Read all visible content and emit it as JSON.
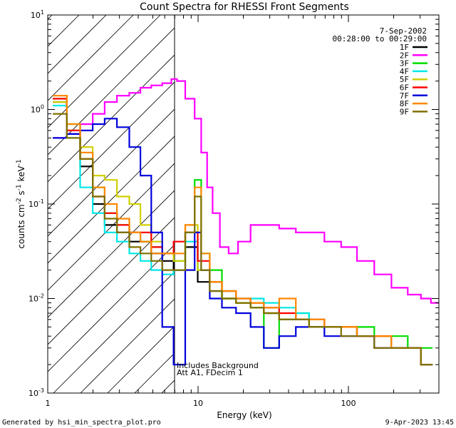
{
  "chart_data": {
    "type": "line",
    "title": "Count Spectra for RHESSI Front Segments",
    "xlabel": "Energy (keV)",
    "ylabel_parts": {
      "a": "counts cm",
      "b": "-2",
      "c": " s",
      "d": "-1",
      "e": " keV",
      "f": "-1"
    },
    "xscale": "log",
    "yscale": "log",
    "xlim": [
      1,
      400
    ],
    "ylim": [
      0.001,
      10
    ],
    "x_ticks": [
      {
        "value": 1,
        "label": "1"
      },
      {
        "value": 10,
        "label": "10"
      },
      {
        "value": 100,
        "label": "100"
      }
    ],
    "y_ticks": [
      {
        "value": 0.001,
        "base": "10",
        "exp": "-3"
      },
      {
        "value": 0.01,
        "base": "10",
        "exp": "-2"
      },
      {
        "value": 0.1,
        "base": "10",
        "exp": "-1"
      },
      {
        "value": 1,
        "base": "10",
        "exp": "0"
      },
      {
        "value": 10,
        "base": "10",
        "exp": "1"
      }
    ],
    "hatched_region": {
      "x": [
        1,
        6
      ]
    },
    "date": "7-Sep-2002",
    "time_range": "00:28:00 to 00:29:00",
    "legend_placement": "top-right",
    "annotations": [
      "Includes Background",
      "Att A1, FDecim 1"
    ],
    "series": [
      {
        "name": "1F",
        "color": "#000000",
        "x": [
          1.2,
          1.5,
          1.8,
          2.2,
          2.6,
          3.2,
          3.8,
          4.5,
          5.3,
          6.3,
          7.5,
          9,
          11,
          13,
          16,
          20,
          25,
          30,
          40,
          50,
          60,
          80,
          100,
          130,
          170,
          220,
          280,
          330
        ],
        "y": [
          1.2,
          0.55,
          0.25,
          0.1,
          0.06,
          0.05,
          0.04,
          0.04,
          0.03,
          0.025,
          0.02,
          0.035,
          0.015,
          0.012,
          0.01,
          0.009,
          0.008,
          0.007,
          0.006,
          0.006,
          0.005,
          0.005,
          0.005,
          0.004,
          0.004,
          0.003,
          0.003,
          0.002
        ]
      },
      {
        "name": "2F",
        "color": "#ff00ff",
        "x": [
          1.2,
          1.5,
          1.8,
          2.2,
          2.6,
          3.2,
          3.8,
          4.5,
          5.3,
          6.3,
          7,
          7.5,
          9,
          10,
          11,
          12,
          13,
          15,
          17,
          20,
          25,
          30,
          40,
          50,
          60,
          80,
          100,
          130,
          170,
          220,
          280,
          330,
          380
        ],
        "y": [
          0.5,
          0.55,
          0.7,
          0.9,
          1.2,
          1.4,
          1.5,
          1.7,
          1.8,
          1.9,
          2.1,
          2.0,
          1.3,
          0.8,
          0.35,
          0.15,
          0.08,
          0.035,
          0.03,
          0.04,
          0.06,
          0.06,
          0.055,
          0.05,
          0.05,
          0.04,
          0.035,
          0.025,
          0.018,
          0.013,
          0.011,
          0.01,
          0.009
        ]
      },
      {
        "name": "3F",
        "color": "#00dd00",
        "x": [
          1.2,
          1.5,
          1.8,
          2.2,
          2.6,
          3.2,
          3.8,
          4.5,
          5.3,
          6.3,
          7.5,
          9,
          10,
          11,
          13,
          16,
          20,
          25,
          30,
          40,
          50,
          60,
          80,
          100,
          130,
          170,
          220,
          280,
          330
        ],
        "y": [
          1.3,
          0.7,
          0.3,
          0.15,
          0.08,
          0.06,
          0.05,
          0.04,
          0.035,
          0.03,
          0.025,
          0.05,
          0.18,
          0.03,
          0.02,
          0.01,
          0.009,
          0.008,
          0.003,
          0.006,
          0.007,
          0.005,
          0.005,
          0.005,
          0.005,
          0.004,
          0.004,
          0.003,
          0.003
        ]
      },
      {
        "name": "4F",
        "color": "#00e8e8",
        "x": [
          1.2,
          1.5,
          1.8,
          2.2,
          2.6,
          3.2,
          3.8,
          4.5,
          5.3,
          6.3,
          7.5,
          9,
          11,
          13,
          16,
          20,
          25,
          30,
          40,
          50,
          60,
          80,
          100,
          130,
          170,
          220,
          280,
          330
        ],
        "y": [
          1.1,
          0.5,
          0.15,
          0.08,
          0.05,
          0.04,
          0.03,
          0.025,
          0.02,
          0.018,
          0.02,
          0.04,
          0.02,
          0.015,
          0.012,
          0.01,
          0.01,
          0.009,
          0.008,
          0.007,
          0.006,
          0.005,
          0.005,
          0.004,
          0.004,
          0.003,
          0.003,
          0.002
        ]
      },
      {
        "name": "5F",
        "color": "#d0d000",
        "x": [
          1.2,
          1.5,
          1.8,
          2.2,
          2.6,
          3.2,
          3.8,
          4.5,
          5.3,
          6.3,
          7.5,
          9,
          11,
          13,
          16,
          20,
          25,
          30,
          40,
          50,
          60,
          80,
          100,
          130,
          170,
          220,
          280,
          330
        ],
        "y": [
          1.2,
          0.6,
          0.4,
          0.2,
          0.18,
          0.12,
          0.1,
          0.06,
          0.04,
          0.03,
          0.025,
          0.06,
          0.02,
          0.015,
          0.01,
          0.009,
          0.008,
          0.007,
          0.006,
          0.006,
          0.005,
          0.005,
          0.005,
          0.004,
          0.004,
          0.003,
          0.003,
          0.002
        ]
      },
      {
        "name": "6F",
        "color": "#ff0000",
        "x": [
          1.2,
          1.5,
          1.8,
          2.2,
          2.6,
          3.2,
          3.8,
          4.5,
          5.3,
          6.3,
          7.5,
          9,
          11,
          13,
          16,
          20,
          25,
          30,
          40,
          50,
          60,
          80,
          100,
          130,
          170,
          220,
          280,
          330
        ],
        "y": [
          1.3,
          0.6,
          0.3,
          0.12,
          0.08,
          0.06,
          0.05,
          0.05,
          0.035,
          0.03,
          0.04,
          0.05,
          0.025,
          0.015,
          0.012,
          0.01,
          0.009,
          0.008,
          0.007,
          0.006,
          0.006,
          0.005,
          0.005,
          0.004,
          0.004,
          0.003,
          0.003,
          0.002
        ]
      },
      {
        "name": "7F",
        "color": "#0000dd",
        "x": [
          1.2,
          1.5,
          1.8,
          2.2,
          2.6,
          3.2,
          3.8,
          4.5,
          5.3,
          6.3,
          7.5,
          9,
          10,
          11,
          13,
          16,
          20,
          25,
          30,
          40,
          50,
          60,
          80,
          100,
          130,
          170,
          220,
          280,
          330
        ],
        "y": [
          0.5,
          0.55,
          0.6,
          0.7,
          0.8,
          0.65,
          0.4,
          0.2,
          0.05,
          0.005,
          0.002,
          0.02,
          0.05,
          0.02,
          0.01,
          0.008,
          0.007,
          0.005,
          0.003,
          0.004,
          0.005,
          0.005,
          0.004,
          0.004,
          0.004,
          0.003,
          0.003,
          0.003,
          0.002
        ]
      },
      {
        "name": "8F",
        "color": "#ff8800",
        "x": [
          1.2,
          1.5,
          1.8,
          2.2,
          2.6,
          3.2,
          3.8,
          4.5,
          5.3,
          6.3,
          7.5,
          9,
          10,
          11,
          13,
          16,
          20,
          25,
          30,
          40,
          50,
          60,
          80,
          100,
          130,
          170,
          220,
          280,
          330
        ],
        "y": [
          1.4,
          0.7,
          0.35,
          0.15,
          0.1,
          0.07,
          0.05,
          0.04,
          0.03,
          0.03,
          0.03,
          0.06,
          0.15,
          0.03,
          0.015,
          0.012,
          0.01,
          0.009,
          0.008,
          0.01,
          0.006,
          0.006,
          0.005,
          0.005,
          0.004,
          0.004,
          0.003,
          0.003,
          0.002
        ]
      },
      {
        "name": "9F",
        "color": "#807000",
        "x": [
          1.2,
          1.5,
          1.8,
          2.2,
          2.6,
          3.2,
          3.8,
          4.5,
          5.3,
          6.3,
          7.5,
          9,
          10,
          11,
          13,
          16,
          20,
          25,
          30,
          40,
          50,
          60,
          80,
          100,
          130,
          170,
          220,
          280,
          330
        ],
        "y": [
          0.9,
          0.5,
          0.3,
          0.12,
          0.07,
          0.05,
          0.035,
          0.03,
          0.025,
          0.02,
          0.02,
          0.05,
          0.12,
          0.02,
          0.012,
          0.01,
          0.009,
          0.008,
          0.007,
          0.006,
          0.006,
          0.005,
          0.005,
          0.004,
          0.004,
          0.003,
          0.003,
          0.003,
          0.002
        ]
      }
    ]
  },
  "footer": {
    "left": "Generated by hsi_min_spectra_plot.pro",
    "right": "9-Apr-2023 13:45"
  }
}
